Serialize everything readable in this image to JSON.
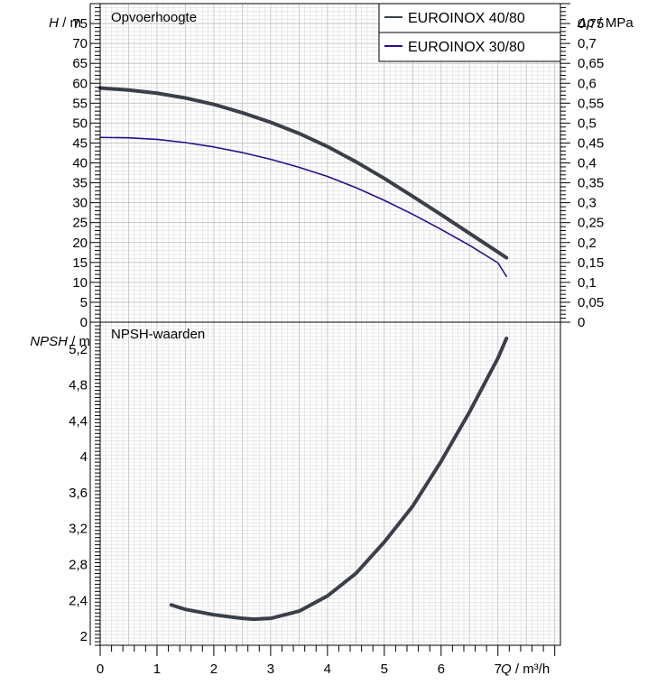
{
  "chart_data": [
    {
      "type": "line",
      "title": "Opvoerhoogte",
      "ylabel_var": "H",
      "ylabel_unit": "m",
      "y2label_var": "Δp",
      "y2label_unit": "MPa",
      "xlim": [
        0,
        8.1
      ],
      "ylim": [
        0,
        80
      ],
      "y2lim": [
        0,
        0.8
      ],
      "ytick_values": [
        0,
        5,
        10,
        15,
        20,
        25,
        30,
        35,
        40,
        45,
        50,
        55,
        60,
        65,
        70,
        75
      ],
      "ytick_labels": [
        "0",
        "5",
        "10",
        "15",
        "20",
        "25",
        "30",
        "35",
        "40",
        "45",
        "50",
        "55",
        "60",
        "65",
        "70",
        "75"
      ],
      "y2tick_values": [
        0,
        0.05,
        0.1,
        0.15,
        0.2,
        0.25,
        0.3,
        0.35,
        0.4,
        0.45,
        0.5,
        0.55,
        0.6,
        0.65,
        0.7,
        0.75
      ],
      "y2tick_labels": [
        "0",
        "0,05",
        "0,1",
        "0,15",
        "0,2",
        "0,25",
        "0,3",
        "0,35",
        "0,4",
        "0,45",
        "0,5",
        "0,55",
        "0,6",
        "0,65",
        "0,7",
        "0,75"
      ],
      "grid": true,
      "legend_position": "top-right",
      "series": [
        {
          "name": "EUROINOX 40/80",
          "color": "#3a3f4a",
          "x": [
            0,
            0.5,
            1,
            1.5,
            2,
            2.5,
            3,
            3.5,
            4,
            4.5,
            5,
            5.5,
            6,
            6.5,
            7,
            7.15
          ],
          "y": [
            58.8,
            58.3,
            57.5,
            56.3,
            54.7,
            52.6,
            50.2,
            47.4,
            44.1,
            40.3,
            36.1,
            31.6,
            27.0,
            22.3,
            17.6,
            16.2
          ]
        },
        {
          "name": "EUROINOX 30/80",
          "color": "#2b0d8f",
          "x": [
            0,
            0.5,
            1,
            1.5,
            2,
            2.5,
            3,
            3.5,
            4,
            4.5,
            5,
            5.5,
            6,
            6.5,
            7,
            7.15
          ],
          "y": [
            46.4,
            46.3,
            45.9,
            45.1,
            44.0,
            42.6,
            40.9,
            38.9,
            36.6,
            33.8,
            30.6,
            27.1,
            23.3,
            19.3,
            14.9,
            11.5
          ]
        }
      ]
    },
    {
      "type": "line",
      "title": "NPSH-waarden",
      "ylabel_var": "NPSH",
      "ylabel_unit": "m",
      "xlabel_var": "Q",
      "xlabel_unit": "m³/h",
      "xlim": [
        0,
        8.1
      ],
      "ylim": [
        1.9,
        5.5
      ],
      "xtick_values": [
        0,
        1,
        2,
        3,
        4,
        5,
        6,
        7
      ],
      "xtick_labels": [
        "0",
        "1",
        "2",
        "3",
        "4",
        "5",
        "6",
        "7"
      ],
      "ytick_values": [
        2,
        2.4,
        2.8,
        3.2,
        3.6,
        4,
        4.4,
        4.8,
        5.2
      ],
      "ytick_labels": [
        "2",
        "2,4",
        "2,8",
        "3,2",
        "3,6",
        "4",
        "4,4",
        "4,8",
        "5,2"
      ],
      "grid": true,
      "series": [
        {
          "color": "#3a3f4a",
          "x": [
            1.25,
            1.5,
            2.0,
            2.5,
            2.7,
            3.0,
            3.5,
            4.0,
            4.5,
            5.0,
            5.5,
            6.0,
            6.5,
            7.0,
            7.15
          ],
          "y": [
            2.35,
            2.3,
            2.24,
            2.2,
            2.19,
            2.2,
            2.28,
            2.45,
            2.7,
            3.05,
            3.45,
            3.95,
            4.5,
            5.1,
            5.32
          ]
        }
      ]
    }
  ]
}
